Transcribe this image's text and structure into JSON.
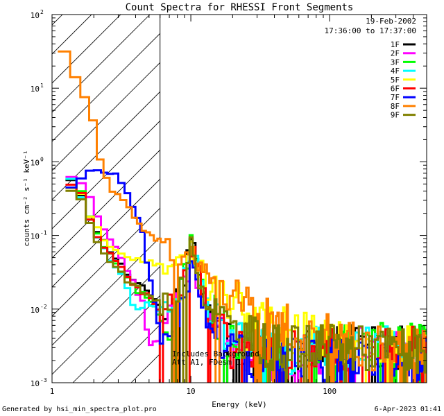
{
  "chart_data": {
    "type": "line",
    "title": "Count Spectra for RHESSI Front Segments",
    "xlabel": "Energy (keV)",
    "ylabel": "counts cm⁻² s⁻¹ keV⁻¹",
    "xscale": "log",
    "yscale": "log",
    "xlim": [
      1,
      500
    ],
    "ylim": [
      0.001,
      100
    ],
    "x_tick_labels": [
      {
        "value": 1,
        "label": "1"
      },
      {
        "value": 10,
        "label": "10"
      },
      {
        "value": 100,
        "label": "100"
      }
    ],
    "y_tick_labels": [
      {
        "value": 100,
        "base": "10",
        "exp": "2"
      },
      {
        "value": 10,
        "base": "10",
        "exp": "1"
      },
      {
        "value": 1,
        "base": "10",
        "exp": "0"
      },
      {
        "value": 0.1,
        "base": "10",
        "exp": "-1"
      },
      {
        "value": 0.01,
        "base": "10",
        "exp": "-2"
      },
      {
        "value": 0.001,
        "base": "10",
        "exp": "-3"
      }
    ],
    "hatched_region_max_energy": 6,
    "date_label": "19-Feb-2002",
    "time_label": "17:36:00 to 17:37:00",
    "annotations": [
      "Includes Background",
      "Att A1, FDesm 1"
    ],
    "legend_position": "top-right",
    "series": [
      {
        "name": "1F",
        "color": "#000000",
        "seed": 11,
        "start": 1.25,
        "points": [
          [
            1.25,
            0.55
          ],
          [
            1.5,
            0.5
          ],
          [
            1.7,
            0.3
          ],
          [
            2.0,
            0.14
          ],
          [
            2.5,
            0.07
          ],
          [
            3.0,
            0.045
          ],
          [
            3.5,
            0.03
          ],
          [
            4.0,
            0.022
          ],
          [
            5.0,
            0.017
          ],
          [
            5.8,
            0.012
          ],
          [
            7.0,
            0.01
          ],
          [
            8.5,
            0.018
          ],
          [
            10.2,
            0.08
          ],
          [
            11,
            0.04
          ],
          [
            13,
            0.01
          ],
          [
            20,
            0.004
          ],
          [
            40,
            0.002
          ],
          [
            80,
            0.003
          ],
          [
            200,
            0.003
          ],
          [
            500,
            0.0028
          ]
        ]
      },
      {
        "name": "2F",
        "color": "#ff00ff",
        "seed": 23,
        "start": 1.25,
        "points": [
          [
            1.25,
            0.6
          ],
          [
            1.5,
            0.55
          ],
          [
            1.8,
            0.4
          ],
          [
            2.0,
            0.22
          ],
          [
            2.5,
            0.1
          ],
          [
            3.0,
            0.06
          ],
          [
            3.5,
            0.035
          ],
          [
            4.0,
            0.02
          ],
          [
            4.5,
            0.012
          ],
          [
            5.0,
            0.003
          ],
          [
            6,
            0.004
          ],
          [
            7.0,
            0.012
          ],
          [
            8.5,
            0.015
          ],
          [
            10.2,
            0.05
          ],
          [
            11,
            0.03
          ],
          [
            13,
            0.008
          ],
          [
            20,
            0.003
          ],
          [
            40,
            0.002
          ],
          [
            80,
            0.0025
          ],
          [
            200,
            0.003
          ],
          [
            500,
            0.0028
          ]
        ]
      },
      {
        "name": "3F",
        "color": "#00ff00",
        "seed": 37,
        "start": 1.25,
        "points": [
          [
            1.25,
            0.65
          ],
          [
            1.5,
            0.5
          ],
          [
            1.7,
            0.3
          ],
          [
            2.0,
            0.12
          ],
          [
            2.5,
            0.06
          ],
          [
            3.0,
            0.035
          ],
          [
            3.5,
            0.025
          ],
          [
            4.0,
            0.018
          ],
          [
            5.0,
            0.014
          ],
          [
            5.8,
            0.008
          ],
          [
            6.5,
            0.004
          ],
          [
            8,
            0.01
          ],
          [
            10.2,
            0.09
          ],
          [
            11,
            0.05
          ],
          [
            13,
            0.01
          ],
          [
            20,
            0.004
          ],
          [
            40,
            0.0025
          ],
          [
            80,
            0.003
          ],
          [
            200,
            0.0035
          ],
          [
            500,
            0.003
          ]
        ]
      },
      {
        "name": "4F",
        "color": "#00ffff",
        "seed": 41,
        "start": 1.25,
        "points": [
          [
            1.25,
            0.58
          ],
          [
            1.5,
            0.5
          ],
          [
            1.7,
            0.28
          ],
          [
            2.0,
            0.11
          ],
          [
            2.5,
            0.055
          ],
          [
            3.0,
            0.035
          ],
          [
            3.5,
            0.018
          ],
          [
            4.0,
            0.01
          ],
          [
            5.0,
            0.012
          ],
          [
            6.0,
            0.009
          ],
          [
            8,
            0.012
          ],
          [
            10.2,
            0.07
          ],
          [
            11,
            0.04
          ],
          [
            13,
            0.01
          ],
          [
            20,
            0.004
          ],
          [
            40,
            0.0025
          ],
          [
            80,
            0.003
          ],
          [
            200,
            0.003
          ],
          [
            500,
            0.0028
          ]
        ]
      },
      {
        "name": "5F",
        "color": "#ffff00",
        "seed": 53,
        "start": 1.25,
        "points": [
          [
            1.25,
            0.5
          ],
          [
            1.5,
            0.46
          ],
          [
            1.7,
            0.3
          ],
          [
            2.0,
            0.14
          ],
          [
            2.5,
            0.075
          ],
          [
            3.0,
            0.06
          ],
          [
            3.5,
            0.05
          ],
          [
            4.0,
            0.05
          ],
          [
            5.0,
            0.045
          ],
          [
            6.0,
            0.04
          ],
          [
            7.0,
            0.045
          ],
          [
            8.5,
            0.05
          ],
          [
            10.2,
            0.07
          ],
          [
            11,
            0.05
          ],
          [
            13,
            0.02
          ],
          [
            20,
            0.012
          ],
          [
            40,
            0.006
          ],
          [
            80,
            0.004
          ],
          [
            200,
            0.003
          ],
          [
            500,
            0.0028
          ]
        ]
      },
      {
        "name": "6F",
        "color": "#ff0000",
        "seed": 67,
        "start": 1.25,
        "points": [
          [
            1.25,
            0.48
          ],
          [
            1.5,
            0.46
          ],
          [
            1.7,
            0.3
          ],
          [
            2.0,
            0.12
          ],
          [
            2.5,
            0.06
          ],
          [
            3.0,
            0.04
          ],
          [
            3.5,
            0.028
          ],
          [
            4.0,
            0.02
          ],
          [
            5.0,
            0.015
          ],
          [
            6.0,
            0.01
          ],
          [
            8,
            0.012
          ],
          [
            10.2,
            0.085
          ],
          [
            11,
            0.04
          ],
          [
            13,
            0.01
          ],
          [
            20,
            0.003
          ],
          [
            40,
            0.002
          ],
          [
            80,
            0.003
          ],
          [
            200,
            0.003
          ],
          [
            500,
            0.003
          ]
        ]
      },
      {
        "name": "7F",
        "color": "#0000ff",
        "seed": 79,
        "start": 1.25,
        "points": [
          [
            1.25,
            0.38
          ],
          [
            1.5,
            0.48
          ],
          [
            1.7,
            0.7
          ],
          [
            2.0,
            0.75
          ],
          [
            2.5,
            0.78
          ],
          [
            3.0,
            0.6
          ],
          [
            3.5,
            0.4
          ],
          [
            4.0,
            0.2
          ],
          [
            4.5,
            0.1
          ],
          [
            5.0,
            0.03
          ],
          [
            6.0,
            0.005
          ],
          [
            7.0,
            0.003
          ],
          [
            8.5,
            0.012
          ],
          [
            10.2,
            0.04
          ],
          [
            11,
            0.02
          ],
          [
            13,
            0.007
          ],
          [
            20,
            0.003
          ],
          [
            40,
            0.002
          ],
          [
            80,
            0.002
          ],
          [
            200,
            0.002
          ],
          [
            500,
            0.002
          ]
        ]
      },
      {
        "name": "8F",
        "color": "#ff8000",
        "seed": 97,
        "start": 1.1,
        "points": [
          [
            1.1,
            33
          ],
          [
            1.3,
            28
          ],
          [
            1.5,
            12
          ],
          [
            1.75,
            7
          ],
          [
            2.0,
            3.3
          ],
          [
            2.3,
            0.8
          ],
          [
            2.7,
            0.4
          ],
          [
            3.2,
            0.3
          ],
          [
            3.8,
            0.2
          ],
          [
            4.5,
            0.13
          ],
          [
            5.5,
            0.09
          ],
          [
            6.5,
            0.08
          ],
          [
            7.5,
            0.06
          ],
          [
            8.5,
            0.06
          ],
          [
            10.2,
            0.06
          ],
          [
            12,
            0.035
          ],
          [
            15,
            0.025
          ],
          [
            20,
            0.015
          ],
          [
            30,
            0.009
          ],
          [
            50,
            0.006
          ],
          [
            100,
            0.004
          ],
          [
            200,
            0.003
          ],
          [
            500,
            0.0025
          ]
        ]
      },
      {
        "name": "9F",
        "color": "#808000",
        "seed": 83,
        "start": 1.25,
        "points": [
          [
            1.25,
            0.45
          ],
          [
            1.5,
            0.42
          ],
          [
            1.7,
            0.25
          ],
          [
            2.0,
            0.1
          ],
          [
            2.5,
            0.05
          ],
          [
            3.0,
            0.035
          ],
          [
            3.5,
            0.025
          ],
          [
            4.0,
            0.02
          ],
          [
            5.0,
            0.015
          ],
          [
            6.0,
            0.012
          ],
          [
            8,
            0.013
          ],
          [
            10.2,
            0.07
          ],
          [
            11,
            0.04
          ],
          [
            13,
            0.012
          ],
          [
            20,
            0.005
          ],
          [
            40,
            0.003
          ],
          [
            80,
            0.003
          ],
          [
            200,
            0.003
          ],
          [
            500,
            0.0028
          ]
        ]
      }
    ]
  },
  "footer": {
    "left": "Generated by hsi_min_spectra_plot.pro",
    "right": "6-Apr-2023 01:41"
  }
}
